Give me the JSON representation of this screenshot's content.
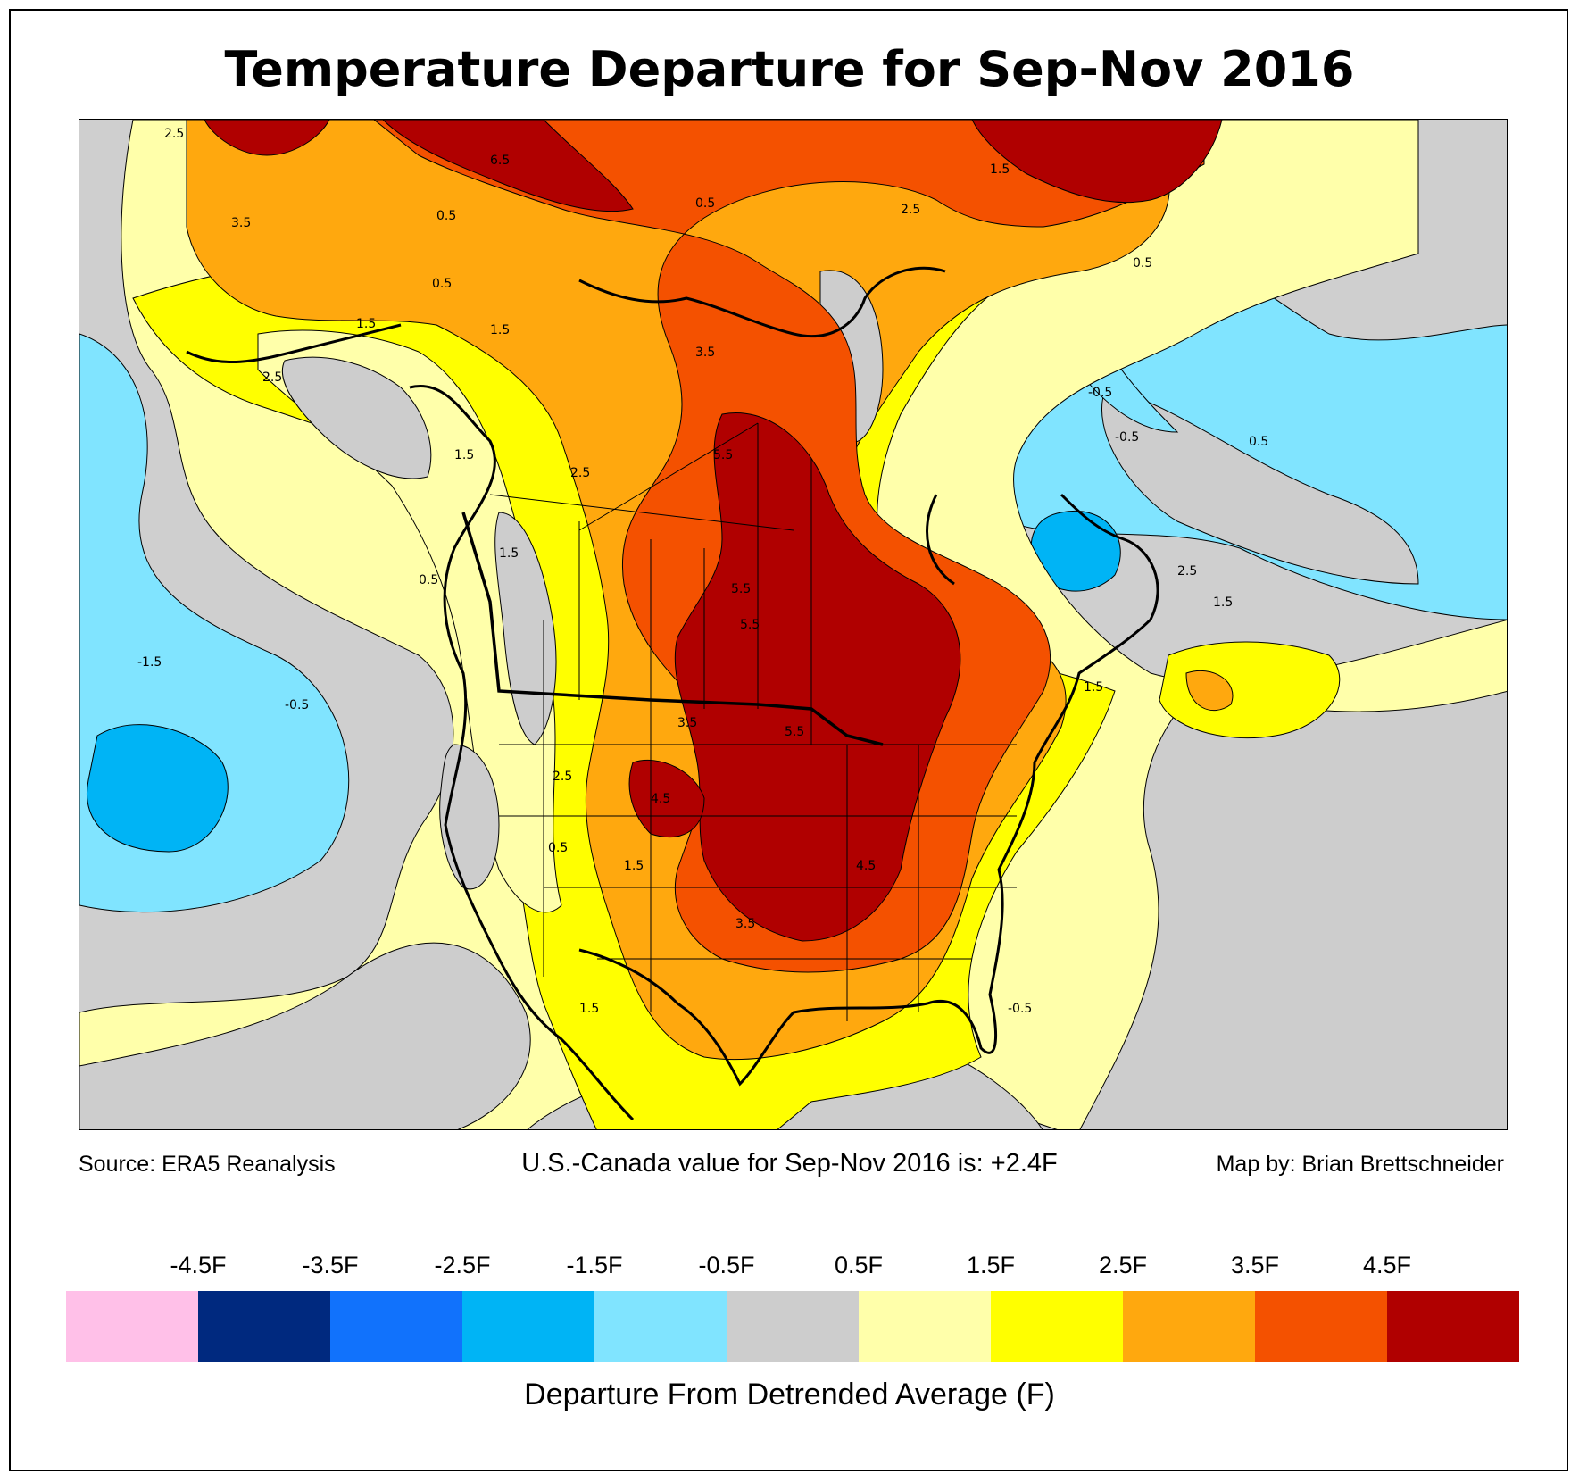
{
  "title": "Temperature Departure for Sep-Nov 2016",
  "source": "Source: ERA5 Reanalysis",
  "summary": "U.S.-Canada value for Sep-Nov 2016 is: +2.4F",
  "credit": "Map by: Brian Brettschneider",
  "colorbar": {
    "label": "Departure From Detrended Average (F)",
    "colors": [
      "#ffc0e8",
      "#00297f",
      "#1172fc",
      "#00b4f5",
      "#80e4ff",
      "#cdcdcd",
      "#ffffaa",
      "#ffff00",
      "#ffa80e",
      "#f45100",
      "#b00000"
    ],
    "ticks": [
      "-4.5F",
      "-3.5F",
      "-2.5F",
      "-1.5F",
      "-0.5F",
      "0.5F",
      "1.5F",
      "2.5F",
      "3.5F",
      "4.5F"
    ]
  },
  "contour_labels": [
    "2.5",
    "3.5",
    "6.5",
    "0.5",
    "0.5",
    "0.5",
    "1.5",
    "1.5",
    "2.5",
    "1.5",
    "1.5",
    "2.5",
    "3.5",
    "5.5",
    "5.5",
    "5.5",
    "3.5",
    "5.5",
    "4.5",
    "4.5",
    "3.5",
    "-1.5",
    "-0.5",
    "-0.5",
    "0.5",
    "-0.5",
    "0.5",
    "2.5",
    "2.5",
    "1.5",
    "1.5",
    "1.5",
    "0.5",
    "1.5",
    "2.5",
    "1.5",
    "-0.5",
    "0.5"
  ]
}
